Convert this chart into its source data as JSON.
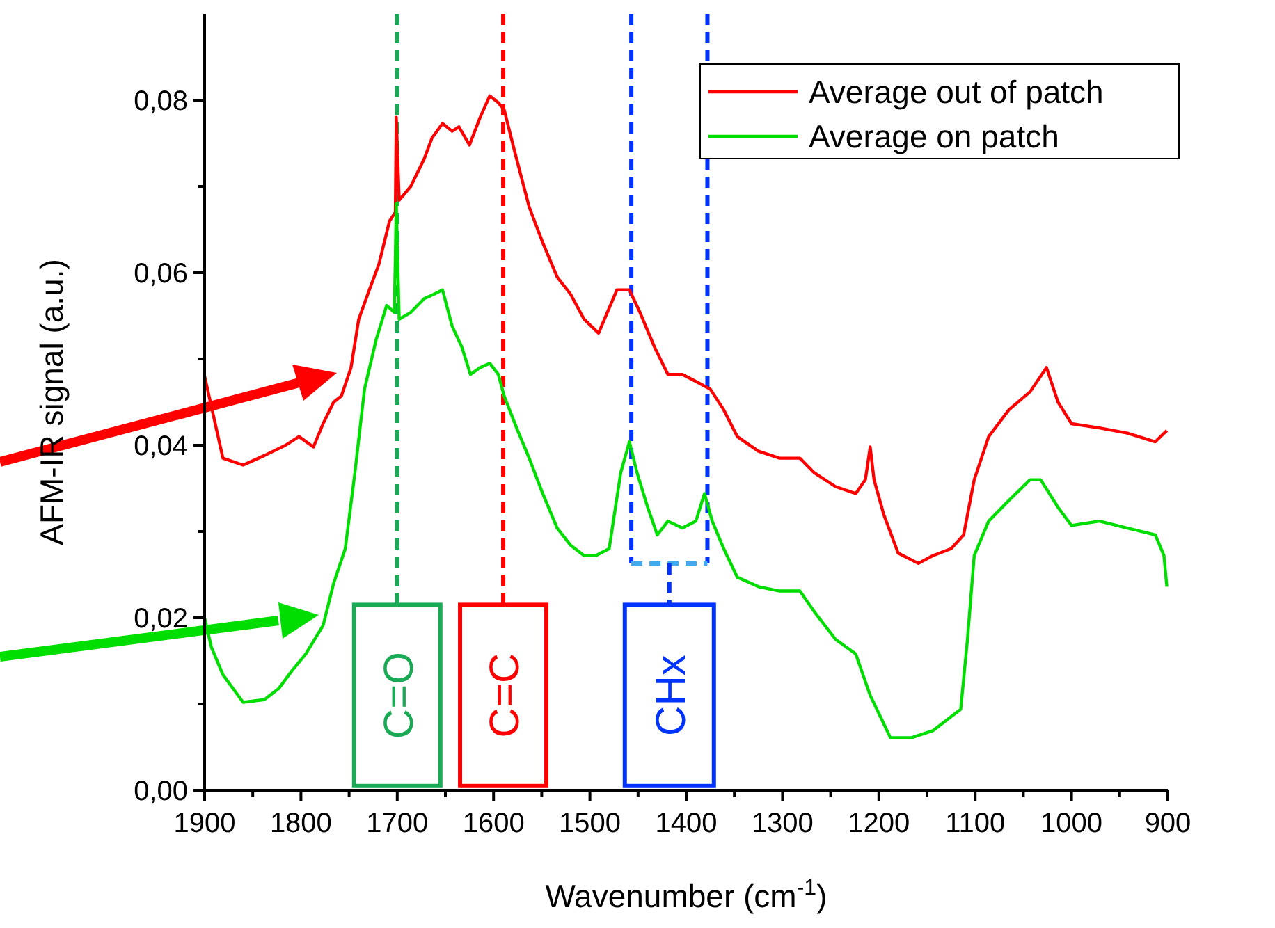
{
  "chart_data": {
    "type": "line",
    "xlabel": "Wavenumber (cm$^{-1}$)",
    "ylabel": "AFM-IR signal (a.u.)",
    "xlim": [
      1900,
      900
    ],
    "ylim": [
      0,
      0.09
    ],
    "xticks": [
      1900,
      {
        "value": 1850,
        "label": null
      },
      1800,
      {
        "value": 1750,
        "label": null
      },
      1700,
      {
        "value": 1650,
        "label": null
      },
      1600,
      {
        "value": 1550,
        "label": null
      },
      1500,
      {
        "value": 1450,
        "label": null
      },
      1400,
      {
        "value": 1350,
        "label": null
      },
      1300,
      {
        "value": 1250,
        "label": null
      },
      1200,
      {
        "value": 1150,
        "label": null
      },
      1100,
      {
        "value": 1050,
        "label": null
      },
      1000,
      {
        "value": 950,
        "label": null
      },
      900
    ],
    "yticks": [
      {
        "value": 0,
        "label": "0,00"
      },
      {
        "value": 0.01,
        "label": null
      },
      {
        "value": 0.02,
        "label": "0,02"
      },
      {
        "value": 0.03,
        "label": null
      },
      {
        "value": 0.04,
        "label": "0,04"
      },
      {
        "value": 0.05,
        "label": null
      },
      {
        "value": 0.06,
        "label": "0,06"
      },
      {
        "value": 0.07,
        "label": null
      },
      {
        "value": 0.08,
        "label": "0,08"
      }
    ],
    "legend": "top right",
    "grid": false,
    "marker": "none",
    "line_style": "solid",
    "series": [
      {
        "name": "Average out of patch",
        "color": "#ff0000",
        "x": [
          1900,
          1896,
          1881,
          1860,
          1838,
          1816,
          1802,
          1787,
          1777,
          1766,
          1758,
          1748,
          1740,
          1729,
          1719,
          1708,
          1702,
          1701,
          1698,
          1686,
          1672,
          1664,
          1653,
          1643,
          1636,
          1625,
          1614,
          1604,
          1595,
          1589,
          1578,
          1563,
          1549,
          1534,
          1520,
          1506,
          1491,
          1472,
          1459,
          1448,
          1433,
          1419,
          1404,
          1390,
          1375,
          1361,
          1347,
          1325,
          1303,
          1282,
          1267,
          1245,
          1224,
          1214,
          1209,
          1205,
          1195,
          1180,
          1159,
          1144,
          1125,
          1112,
          1101,
          1086,
          1065,
          1043,
          1026,
          1014,
          1000,
          971,
          942,
          913,
          901
        ],
        "values": [
          0.048,
          0.046,
          0.0385,
          0.0377,
          0.0388,
          0.04,
          0.041,
          0.0398,
          0.0425,
          0.045,
          0.0457,
          0.049,
          0.0546,
          0.058,
          0.061,
          0.066,
          0.067,
          0.078,
          0.0684,
          0.07,
          0.0732,
          0.0756,
          0.0773,
          0.0764,
          0.0769,
          0.0748,
          0.078,
          0.0805,
          0.0797,
          0.0789,
          0.074,
          0.0676,
          0.0635,
          0.0595,
          0.0575,
          0.0546,
          0.053,
          0.058,
          0.058,
          0.0554,
          0.0514,
          0.0482,
          0.0482,
          0.0474,
          0.0465,
          0.0441,
          0.041,
          0.0393,
          0.0385,
          0.0385,
          0.0368,
          0.0352,
          0.0344,
          0.036,
          0.0398,
          0.036,
          0.032,
          0.0275,
          0.0263,
          0.0272,
          0.028,
          0.0296,
          0.036,
          0.041,
          0.0441,
          0.0462,
          0.049,
          0.045,
          0.0425,
          0.042,
          0.0414,
          0.0404,
          0.0417
        ]
      },
      {
        "name": "Average on patch",
        "color": "#00dd00",
        "x": [
          1900,
          1893,
          1881,
          1860,
          1838,
          1823,
          1809,
          1795,
          1777,
          1766,
          1754,
          1744,
          1734,
          1722,
          1711,
          1703,
          1701,
          1698,
          1686,
          1672,
          1662,
          1653,
          1643,
          1633,
          1624,
          1614,
          1604,
          1595,
          1589,
          1575,
          1563,
          1549,
          1534,
          1520,
          1506,
          1494,
          1480,
          1468,
          1459,
          1451,
          1440,
          1430,
          1419,
          1404,
          1390,
          1381,
          1373,
          1361,
          1347,
          1325,
          1303,
          1282,
          1267,
          1245,
          1224,
          1209,
          1188,
          1166,
          1144,
          1115,
          1108,
          1101,
          1086,
          1065,
          1043,
          1032,
          1014,
          1000,
          971,
          942,
          913,
          904,
          901
        ],
        "values": [
          0.02,
          0.0166,
          0.0134,
          0.0102,
          0.0105,
          0.0118,
          0.0139,
          0.0158,
          0.0191,
          0.024,
          0.028,
          0.0368,
          0.0465,
          0.0522,
          0.0562,
          0.0554,
          0.068,
          0.0546,
          0.0554,
          0.057,
          0.0575,
          0.058,
          0.0538,
          0.0514,
          0.0482,
          0.049,
          0.0495,
          0.0482,
          0.0457,
          0.0417,
          0.0385,
          0.0344,
          0.0304,
          0.0284,
          0.0272,
          0.0272,
          0.028,
          0.0368,
          0.0404,
          0.0368,
          0.0328,
          0.0296,
          0.0312,
          0.0304,
          0.0312,
          0.0344,
          0.0312,
          0.028,
          0.0247,
          0.0236,
          0.0231,
          0.0231,
          0.0207,
          0.0175,
          0.0158,
          0.011,
          0.0061,
          0.0061,
          0.0069,
          0.0094,
          0.0175,
          0.0272,
          0.0312,
          0.0336,
          0.036,
          0.036,
          0.0328,
          0.0307,
          0.0312,
          0.0304,
          0.0296,
          0.0272,
          0.0236
        ]
      }
    ],
    "ref_lines": [
      {
        "axis": "x",
        "value": 1700,
        "label": "C=O",
        "color": "#1aaa55",
        "line_style": "dashed"
      },
      {
        "axis": "x",
        "value": 1590,
        "label": "C=C",
        "color": "#ff0000",
        "line_style": "dashed"
      },
      {
        "axis": "x",
        "value": 1457,
        "label": null,
        "color": "#0033ff",
        "line_style": "dashed"
      },
      {
        "axis": "x",
        "value": 1378,
        "label": null,
        "color": "#0033ff",
        "line_style": "dashed"
      }
    ],
    "annotations": [
      "CHx"
    ]
  }
}
